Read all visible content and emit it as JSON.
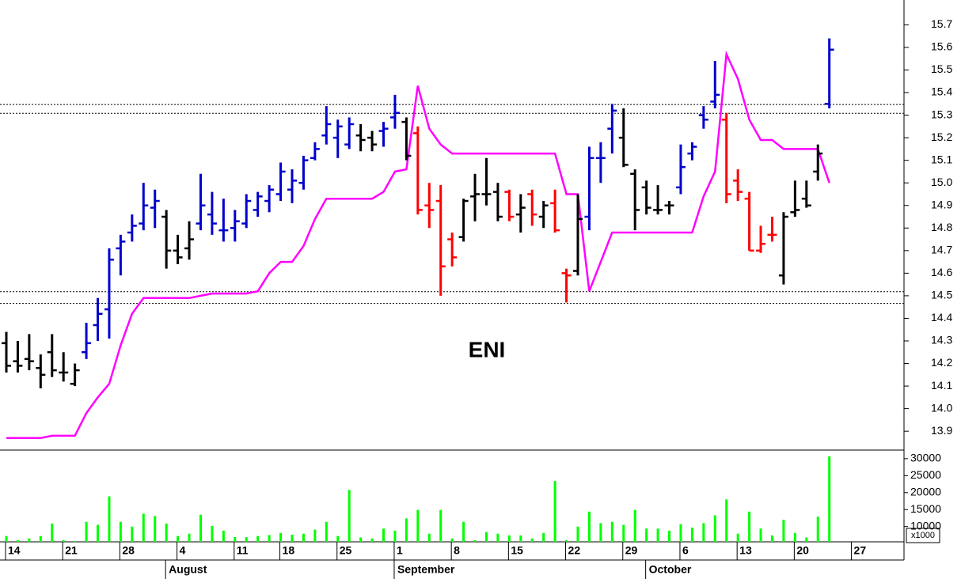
{
  "chart_data": [
    {
      "type": "ohlc",
      "title": "ENI",
      "open": [
        14.29,
        14.21,
        14.22,
        14.18,
        14.25,
        14.16,
        14.11,
        14.25,
        14.37,
        14.44,
        14.71,
        14.78,
        14.82,
        14.89,
        14.85,
        14.7,
        14.71,
        14.82,
        14.86,
        14.79,
        14.8,
        14.82,
        14.88,
        14.92,
        14.95,
        14.97,
        15.0,
        15.11,
        15.21,
        15.2,
        15.17,
        15.21,
        15.2,
        15.23,
        15.29,
        15.27,
        15.22,
        14.9,
        14.92,
        14.75,
        14.76,
        14.94,
        14.95,
        14.96,
        14.96,
        14.86,
        14.95,
        14.85,
        14.91,
        14.6,
        14.61,
        14.85,
        15.11,
        15.24,
        15.2,
        15.04,
        14.98,
        14.88,
        14.9,
        14.98,
        15.13,
        15.3,
        15.36,
        15.28,
        15.01,
        14.93,
        14.7,
        14.77,
        14.59,
        14.87,
        14.93,
        15.05,
        15.35,
        null,
        null
      ],
      "high": [
        14.34,
        14.3,
        14.33,
        14.24,
        14.33,
        14.25,
        14.2,
        14.38,
        14.49,
        14.71,
        14.77,
        14.86,
        15.0,
        14.97,
        14.88,
        14.77,
        14.83,
        15.04,
        14.96,
        14.93,
        14.88,
        14.95,
        14.96,
        14.99,
        15.09,
        15.06,
        15.12,
        15.18,
        15.34,
        15.28,
        15.29,
        15.26,
        15.23,
        15.27,
        15.39,
        15.29,
        15.25,
        15.0,
        14.99,
        14.78,
        14.93,
        15.04,
        15.11,
        15.0,
        14.97,
        14.95,
        14.97,
        14.92,
        14.97,
        14.62,
        14.95,
        15.16,
        15.18,
        15.35,
        15.33,
        15.06,
        15.01,
        14.99,
        14.92,
        15.17,
        15.18,
        15.34,
        15.54,
        15.31,
        15.06,
        14.96,
        14.81,
        14.85,
        14.87,
        15.01,
        15.01,
        15.17,
        15.64,
        null,
        null
      ],
      "low": [
        14.16,
        14.16,
        14.17,
        14.09,
        14.14,
        14.12,
        14.1,
        14.22,
        14.3,
        14.31,
        14.59,
        14.74,
        14.79,
        14.8,
        14.62,
        14.64,
        14.66,
        14.79,
        14.77,
        14.74,
        14.74,
        14.8,
        14.85,
        14.87,
        14.92,
        14.91,
        14.97,
        15.1,
        15.17,
        15.11,
        15.15,
        15.14,
        15.14,
        15.16,
        15.24,
        15.1,
        14.86,
        14.8,
        14.5,
        14.63,
        14.74,
        14.83,
        14.9,
        14.83,
        14.83,
        14.78,
        14.81,
        14.8,
        14.78,
        14.47,
        14.59,
        14.79,
        15.0,
        15.13,
        15.07,
        14.79,
        14.86,
        14.86,
        14.86,
        14.95,
        15.1,
        15.24,
        15.33,
        14.91,
        14.92,
        14.7,
        14.69,
        14.74,
        14.55,
        14.85,
        14.89,
        15.01,
        15.33,
        null,
        null
      ],
      "close": [
        14.19,
        14.19,
        14.21,
        14.15,
        14.17,
        14.16,
        14.17,
        14.29,
        14.42,
        14.66,
        14.74,
        14.81,
        14.9,
        14.92,
        14.7,
        14.67,
        14.75,
        14.9,
        14.82,
        14.79,
        14.83,
        14.92,
        14.94,
        14.97,
        15.05,
        15.01,
        15.1,
        15.15,
        15.26,
        15.25,
        15.26,
        15.19,
        15.17,
        15.24,
        15.31,
        15.12,
        14.88,
        14.88,
        14.63,
        14.67,
        14.92,
        14.95,
        14.95,
        14.85,
        14.85,
        14.89,
        14.86,
        14.9,
        14.79,
        14.59,
        14.84,
        15.11,
        15.11,
        15.32,
        15.08,
        14.88,
        14.89,
        14.88,
        14.9,
        15.07,
        15.16,
        15.28,
        15.39,
        14.95,
        14.96,
        14.7,
        14.73,
        14.77,
        14.85,
        14.88,
        14.9,
        15.13,
        15.59,
        null,
        null
      ],
      "colors": [
        "#000000",
        "#000000",
        "#000000",
        "#000000",
        "#000000",
        "#000000",
        "#000000",
        "#0000cc",
        "#0000cc",
        "#0000cc",
        "#0000cc",
        "#0000cc",
        "#0000cc",
        "#0000cc",
        "#000000",
        "#000000",
        "#000000",
        "#0000cc",
        "#0000cc",
        "#0000cc",
        "#0000cc",
        "#0000cc",
        "#0000cc",
        "#0000cc",
        "#0000cc",
        "#0000cc",
        "#0000cc",
        "#0000cc",
        "#0000cc",
        "#0000cc",
        "#0000cc",
        "#000000",
        "#000000",
        "#0000cc",
        "#0000cc",
        "#000000",
        "#ff0000",
        "#ff0000",
        "#ff0000",
        "#ff0000",
        "#000000",
        "#000000",
        "#000000",
        "#000000",
        "#ff0000",
        "#000000",
        "#ff0000",
        "#000000",
        "#ff0000",
        "#ff0000",
        "#000000",
        "#0000cc",
        "#0000cc",
        "#0000cc",
        "#000000",
        "#000000",
        "#000000",
        "#000000",
        "#000000",
        "#0000cc",
        "#0000cc",
        "#0000cc",
        "#0000cc",
        "#ff0000",
        "#ff0000",
        "#ff0000",
        "#ff0000",
        "#ff0000",
        "#000000",
        "#000000",
        "#000000",
        "#000000",
        "#0000cc",
        null,
        null
      ],
      "stop_line": {
        "color": "#ff00ff",
        "values": [
          13.87,
          13.87,
          13.87,
          13.87,
          13.88,
          13.88,
          13.88,
          13.98,
          14.05,
          14.11,
          14.28,
          14.42,
          14.49,
          14.49,
          14.49,
          14.49,
          14.49,
          14.5,
          14.51,
          14.51,
          14.51,
          14.51,
          14.52,
          14.6,
          14.65,
          14.65,
          14.72,
          14.84,
          14.93,
          14.93,
          14.93,
          14.93,
          14.93,
          14.96,
          15.05,
          15.06,
          15.43,
          15.24,
          15.17,
          15.13,
          15.13,
          15.13,
          15.13,
          15.13,
          15.13,
          15.13,
          15.13,
          15.13,
          15.13,
          14.95,
          14.95,
          14.52,
          14.65,
          14.78,
          14.78,
          14.78,
          14.78,
          14.78,
          14.78,
          14.78,
          14.78,
          14.94,
          15.05,
          15.57,
          15.46,
          15.28,
          15.19,
          15.19,
          15.15,
          15.15,
          15.15,
          15.15,
          15.0,
          null,
          null
        ]
      },
      "reference_lines": [
        15.347,
        15.308,
        14.518,
        14.466
      ],
      "ylim": [
        13.82,
        15.81
      ],
      "yticks": [
        13.9,
        {
          "value": 14.0,
          "label": "14.0"
        },
        14.1,
        14.2,
        14.3,
        14.4,
        14.5,
        14.6,
        14.7,
        14.8,
        14.9,
        {
          "value": 15.0,
          "label": "15.0"
        },
        15.1,
        15.2,
        15.3,
        15.4,
        15.5,
        15.6,
        15.7
      ]
    },
    {
      "type": "bar",
      "color": "#00ff00",
      "unit_note": "x1000",
      "categories": [
        "14",
        null,
        null,
        null,
        null,
        "21",
        null,
        null,
        null,
        null,
        "28",
        null,
        null,
        null,
        null,
        "4",
        null,
        null,
        null,
        null,
        "11",
        null,
        null,
        null,
        "18",
        null,
        null,
        null,
        null,
        "25",
        null,
        null,
        null,
        null,
        "1",
        null,
        null,
        null,
        null,
        "8",
        null,
        null,
        null,
        null,
        "15",
        null,
        null,
        null,
        null,
        "22",
        null,
        null,
        null,
        null,
        "29",
        null,
        null,
        null,
        null,
        "6",
        null,
        null,
        null,
        null,
        "13",
        null,
        null,
        null,
        null,
        "20",
        null,
        null,
        null,
        null,
        "27"
      ],
      "months": [
        null,
        null,
        null,
        null,
        null,
        null,
        null,
        null,
        null,
        null,
        null,
        null,
        null,
        null,
        "August",
        null,
        null,
        null,
        null,
        null,
        null,
        null,
        null,
        null,
        null,
        null,
        null,
        null,
        null,
        null,
        null,
        null,
        null,
        null,
        "September",
        null,
        null,
        null,
        null,
        null,
        null,
        null,
        null,
        null,
        null,
        null,
        null,
        null,
        null,
        null,
        null,
        null,
        null,
        null,
        null,
        null,
        "October",
        null,
        null,
        null,
        null,
        null,
        null,
        null,
        null,
        null,
        null,
        null,
        null,
        null,
        null,
        null,
        null,
        null,
        null
      ],
      "values": [
        7200,
        6000,
        6500,
        7200,
        10900,
        6000,
        5700,
        11400,
        10500,
        18900,
        11400,
        10000,
        13800,
        13100,
        10900,
        7200,
        7900,
        13500,
        10200,
        8800,
        6900,
        6900,
        7200,
        7500,
        8100,
        7600,
        7900,
        9100,
        11400,
        7200,
        20800,
        6800,
        6500,
        9400,
        8800,
        12400,
        14900,
        7900,
        14900,
        6500,
        11400,
        6000,
        8400,
        7900,
        7400,
        7400,
        6500,
        8100,
        23400,
        6000,
        10000,
        14400,
        11000,
        11400,
        10500,
        14900,
        9400,
        9400,
        8800,
        10700,
        9700,
        11000,
        13300,
        18000,
        7900,
        14400,
        9400,
        7400,
        12000,
        8100,
        6800,
        12900,
        30700,
        null,
        null
      ],
      "ylim": [
        5500,
        32300
      ],
      "yticks": [
        10000,
        15000,
        20000,
        25000,
        30000
      ]
    }
  ]
}
